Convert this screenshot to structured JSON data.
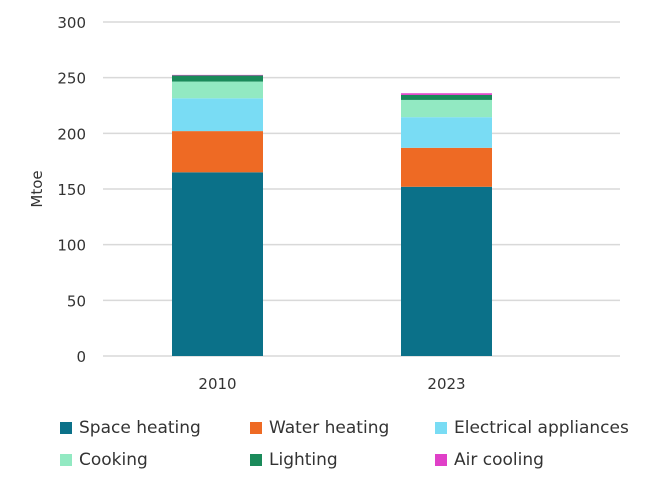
{
  "chart_data": {
    "type": "bar",
    "stacked": true,
    "categories": [
      "2010",
      "2023"
    ],
    "ylabel": "Mtoe",
    "ylim": [
      0,
      300
    ],
    "yticks": [
      0,
      50,
      100,
      150,
      200,
      250,
      300
    ],
    "grid": true,
    "legend_position": "bottom",
    "series": [
      {
        "name": "Space heating",
        "color": "#0b7189",
        "values": [
          165,
          152
        ]
      },
      {
        "name": "Water heating",
        "color": "#ee6a24",
        "values": [
          37,
          35
        ]
      },
      {
        "name": "Electrical appliances",
        "color": "#79dcf4",
        "values": [
          29.5,
          27.5
        ]
      },
      {
        "name": "Cooking",
        "color": "#92e9c2",
        "values": [
          15,
          15.5
        ]
      },
      {
        "name": "Lighting",
        "color": "#1a8a5a",
        "values": [
          5.5,
          4.5
        ]
      },
      {
        "name": "Air cooling",
        "color": "#e040c8",
        "values": [
          0.5,
          1.5
        ]
      }
    ]
  }
}
